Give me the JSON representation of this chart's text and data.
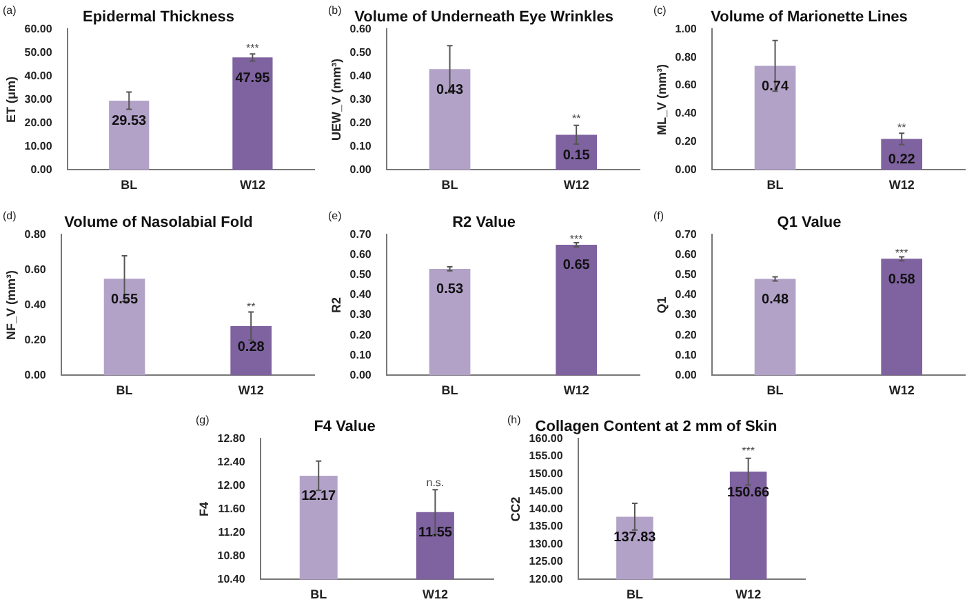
{
  "chart_data": [
    {
      "type": "bar",
      "title": "Epidermal Thickness",
      "ylabel": "ET (μm)",
      "categories": [
        "BL",
        "W12"
      ],
      "values": [
        29.53,
        47.95
      ],
      "errors": [
        3.7,
        1.5
      ],
      "colors": [
        "#b3a2c8",
        "#7f62a0"
      ],
      "ylim": [
        0,
        60
      ],
      "yticks": [
        {
          "value": 0,
          "label": "0.00"
        },
        {
          "value": 10,
          "label": "10.00"
        },
        {
          "value": 20,
          "label": "20.00"
        },
        {
          "value": 30,
          "label": "30.00"
        },
        {
          "value": 40,
          "label": "40.00"
        },
        {
          "value": 50,
          "label": "50.00"
        },
        {
          "value": 60,
          "label": "60.00"
        }
      ],
      "grid": false,
      "legend": false,
      "data_labels": true,
      "annotations": [
        "(a)",
        {
          "text": "***",
          "x": "W12",
          "y": 51
        }
      ]
    },
    {
      "type": "bar",
      "title": "Volume of Underneath Eye Wrinkles",
      "ylabel": "UEW_V (mm³)",
      "categories": [
        "BL",
        "W12"
      ],
      "values": [
        0.43,
        0.15
      ],
      "errors": [
        0.1,
        0.04
      ],
      "colors": [
        "#b3a2c8",
        "#7f62a0"
      ],
      "ylim": [
        0,
        0.6
      ],
      "yticks": [
        {
          "value": 0,
          "label": "0.00"
        },
        {
          "value": 0.1,
          "label": "0.10"
        },
        {
          "value": 0.2,
          "label": "0.20"
        },
        {
          "value": 0.3,
          "label": "0.30"
        },
        {
          "value": 0.4,
          "label": "0.40"
        },
        {
          "value": 0.5,
          "label": "0.50"
        },
        {
          "value": 0.6,
          "label": "0.60"
        }
      ],
      "grid": false,
      "legend": false,
      "data_labels": true,
      "annotations": [
        "(b)",
        {
          "text": "**",
          "x": "W12",
          "y": 0.21
        }
      ]
    },
    {
      "type": "bar",
      "title": "Volume of Marionette Lines",
      "ylabel": "ML_V (mm³)",
      "categories": [
        "BL",
        "W12"
      ],
      "values": [
        0.74,
        0.22
      ],
      "errors": [
        0.18,
        0.04
      ],
      "colors": [
        "#b3a2c8",
        "#7f62a0"
      ],
      "ylim": [
        0,
        1
      ],
      "yticks": [
        {
          "value": 0,
          "label": "0.00"
        },
        {
          "value": 0.2,
          "label": "0.20"
        },
        {
          "value": 0.4,
          "label": "0.40"
        },
        {
          "value": 0.6,
          "label": "0.60"
        },
        {
          "value": 0.8,
          "label": "0.80"
        },
        {
          "value": 1,
          "label": "1.00"
        }
      ],
      "grid": false,
      "legend": false,
      "data_labels": true,
      "annotations": [
        "(c)",
        {
          "text": "**",
          "x": "W12",
          "y": 0.29
        }
      ]
    },
    {
      "type": "bar",
      "title": "Volume of Nasolabial Fold",
      "ylabel": "NF_V (mm³)",
      "categories": [
        "BL",
        "W12"
      ],
      "values": [
        0.55,
        0.28
      ],
      "errors": [
        0.13,
        0.08
      ],
      "colors": [
        "#b3a2c8",
        "#7f62a0"
      ],
      "ylim": [
        0,
        0.8
      ],
      "yticks": [
        {
          "value": 0,
          "label": "0.00"
        },
        {
          "value": 0.2,
          "label": "0.20"
        },
        {
          "value": 0.4,
          "label": "0.40"
        },
        {
          "value": 0.6,
          "label": "0.60"
        },
        {
          "value": 0.8,
          "label": "0.80"
        }
      ],
      "grid": false,
      "legend": false,
      "data_labels": true,
      "annotations": [
        "(d)",
        {
          "text": "**",
          "x": "W12",
          "y": 0.38
        }
      ]
    },
    {
      "type": "bar",
      "title": "R2 Value",
      "ylabel": "R2",
      "categories": [
        "BL",
        "W12"
      ],
      "values": [
        0.53,
        0.65
      ],
      "errors": [
        0.01,
        0.01
      ],
      "colors": [
        "#b3a2c8",
        "#7f62a0"
      ],
      "ylim": [
        0,
        0.7
      ],
      "yticks": [
        {
          "value": 0,
          "label": "0.00"
        },
        {
          "value": 0.1,
          "label": "0.10"
        },
        {
          "value": 0.2,
          "label": "0.20"
        },
        {
          "value": 0.3,
          "label": "0.30"
        },
        {
          "value": 0.4,
          "label": "0.40"
        },
        {
          "value": 0.5,
          "label": "0.50"
        },
        {
          "value": 0.6,
          "label": "0.60"
        },
        {
          "value": 0.7,
          "label": "0.70"
        }
      ],
      "grid": false,
      "legend": false,
      "data_labels": true,
      "annotations": [
        "(e)",
        {
          "text": "***",
          "x": "W12",
          "y": 0.67
        }
      ]
    },
    {
      "type": "bar",
      "title": "Q1 Value",
      "ylabel": "Q1",
      "categories": [
        "BL",
        "W12"
      ],
      "values": [
        0.48,
        0.58
      ],
      "errors": [
        0.01,
        0.01
      ],
      "colors": [
        "#b3a2c8",
        "#7f62a0"
      ],
      "ylim": [
        0,
        0.7
      ],
      "yticks": [
        {
          "value": 0,
          "label": "0.00"
        },
        {
          "value": 0.1,
          "label": "0.10"
        },
        {
          "value": 0.2,
          "label": "0.20"
        },
        {
          "value": 0.3,
          "label": "0.30"
        },
        {
          "value": 0.4,
          "label": "0.40"
        },
        {
          "value": 0.5,
          "label": "0.50"
        },
        {
          "value": 0.6,
          "label": "0.60"
        },
        {
          "value": 0.7,
          "label": "0.70"
        }
      ],
      "grid": false,
      "legend": false,
      "data_labels": true,
      "annotations": [
        "(f)",
        {
          "text": "***",
          "x": "W12",
          "y": 0.6
        }
      ]
    },
    {
      "type": "bar",
      "title": "F4 Value",
      "ylabel": "F4",
      "categories": [
        "BL",
        "W12"
      ],
      "values": [
        12.17,
        11.55
      ],
      "errors": [
        0.25,
        0.38
      ],
      "colors": [
        "#b3a2c8",
        "#7f62a0"
      ],
      "ylim": [
        10.4,
        12.8
      ],
      "yticks": [
        {
          "value": 10.4,
          "label": "10.40"
        },
        {
          "value": 10.8,
          "label": "10.80"
        },
        {
          "value": 11.2,
          "label": "11.20"
        },
        {
          "value": 11.6,
          "label": "11.60"
        },
        {
          "value": 12,
          "label": "12.00"
        },
        {
          "value": 12.4,
          "label": "12.40"
        },
        {
          "value": 12.8,
          "label": "12.80"
        }
      ],
      "grid": false,
      "legend": false,
      "data_labels": true,
      "annotations": [
        "(g)",
        {
          "text": "n.s.",
          "x": "W12",
          "y": 12.02
        }
      ]
    },
    {
      "type": "bar",
      "title": "Collagen Content at 2 mm of Skin",
      "ylabel": "CC2",
      "categories": [
        "BL",
        "W12"
      ],
      "values": [
        137.83,
        150.66
      ],
      "errors": [
        3.8,
        3.8
      ],
      "colors": [
        "#b3a2c8",
        "#7f62a0"
      ],
      "ylim": [
        120,
        160
      ],
      "yticks": [
        {
          "value": 120,
          "label": "120.00"
        },
        {
          "value": 125,
          "label": "125.00"
        },
        {
          "value": 130,
          "label": "130.00"
        },
        {
          "value": 135,
          "label": "135.00"
        },
        {
          "value": 140,
          "label": "140.00"
        },
        {
          "value": 145,
          "label": "145.00"
        },
        {
          "value": 150,
          "label": "150.00"
        },
        {
          "value": 155,
          "label": "155.00"
        },
        {
          "value": 160,
          "label": "160.00"
        }
      ],
      "grid": false,
      "legend": false,
      "data_labels": true,
      "annotations": [
        "(h)",
        {
          "text": "***",
          "x": "W12",
          "y": 156
        }
      ]
    }
  ]
}
